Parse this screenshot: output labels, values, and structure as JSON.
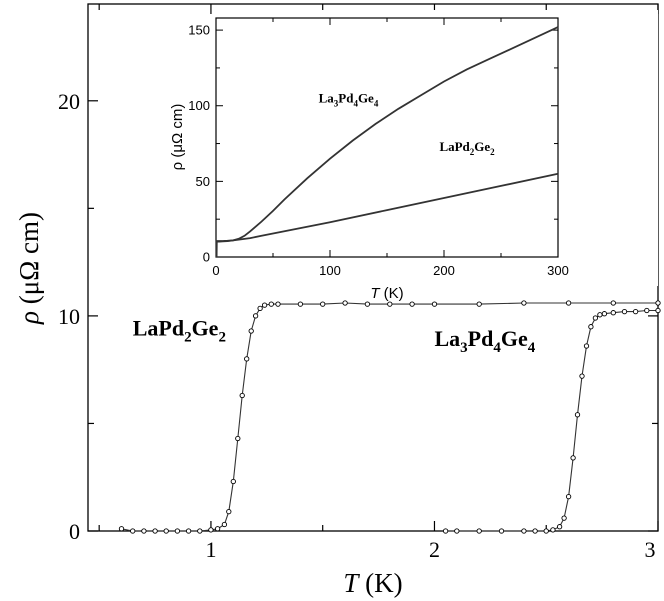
{
  "chart_data": [
    {
      "type": "scatter",
      "title": "",
      "xlabel": {
        "symbol": "T",
        "unit": "(K)"
      },
      "ylabel": {
        "symbol": "ρ",
        "unit": "(μΩ cm)"
      },
      "xlim": [
        0.45,
        3.0
      ],
      "ylim": [
        0,
        24.5
      ],
      "xticks": [
        1,
        2,
        3
      ],
      "yticks": [
        0,
        10,
        20
      ],
      "grid": false,
      "legend": "none",
      "series": [
        {
          "label": {
            "base": "LaPd",
            "sub1": "2",
            "mid": "Ge",
            "sub2": "2"
          },
          "label_anchor": {
            "x": 0.65,
            "y": 9.1
          },
          "x": [
            0.6,
            0.65,
            0.7,
            0.75,
            0.8,
            0.85,
            0.9,
            0.95,
            1.0,
            1.03,
            1.06,
            1.08,
            1.1,
            1.12,
            1.14,
            1.16,
            1.18,
            1.2,
            1.22,
            1.24,
            1.27,
            1.3,
            1.4,
            1.5,
            1.6,
            1.7,
            1.8,
            1.9,
            2.0,
            2.2,
            2.4,
            2.6,
            2.8,
            3.0
          ],
          "y": [
            0.1,
            0.0,
            0.0,
            0.0,
            0.0,
            0.0,
            0.0,
            0.0,
            0.05,
            0.1,
            0.3,
            0.9,
            2.3,
            4.3,
            6.3,
            8.0,
            9.3,
            10.0,
            10.35,
            10.5,
            10.55,
            10.55,
            10.55,
            10.55,
            10.6,
            10.55,
            10.55,
            10.55,
            10.55,
            10.55,
            10.6,
            10.6,
            10.6,
            10.6
          ]
        },
        {
          "label": {
            "base": "La",
            "sub1": "3",
            "mid": "Pd",
            "sub2": "4",
            "end": "Ge",
            "sub3": "4"
          },
          "label_anchor": {
            "x": 2.0,
            "y": 8.6
          },
          "x": [
            2.05,
            2.1,
            2.2,
            2.3,
            2.4,
            2.45,
            2.5,
            2.53,
            2.56,
            2.58,
            2.6,
            2.62,
            2.64,
            2.66,
            2.68,
            2.7,
            2.72,
            2.74,
            2.76,
            2.8,
            2.85,
            2.9,
            2.95,
            3.0
          ],
          "y": [
            0.0,
            0.0,
            0.0,
            0.0,
            0.0,
            0.0,
            0.0,
            0.05,
            0.2,
            0.6,
            1.6,
            3.4,
            5.4,
            7.2,
            8.6,
            9.5,
            9.9,
            10.05,
            10.1,
            10.15,
            10.2,
            10.2,
            10.25,
            10.25
          ]
        }
      ]
    },
    {
      "type": "line",
      "title": "",
      "xlabel": {
        "symbol": "T",
        "unit": "(K)"
      },
      "ylabel": "ρ (μΩ cm)",
      "xlim": [
        0,
        300
      ],
      "ylim": [
        0,
        158
      ],
      "xticks": [
        0,
        100,
        200,
        300
      ],
      "yticks": [
        0,
        50,
        100,
        150
      ],
      "grid": false,
      "legend": "none",
      "series": [
        {
          "label": {
            "base": "La",
            "sub1": "3",
            "mid": "Pd",
            "sub2": "4",
            "end": "Ge",
            "sub3": "4"
          },
          "label_anchor": {
            "x": 90,
            "y": 102
          },
          "x": [
            1,
            3,
            6,
            10,
            15,
            20,
            25,
            30,
            40,
            50,
            60,
            80,
            100,
            120,
            140,
            160,
            180,
            200,
            220,
            240,
            260,
            280,
            300
          ],
          "y": [
            10.2,
            10.2,
            10.3,
            10.5,
            11.0,
            12.0,
            14.0,
            17.0,
            23.5,
            30.5,
            38.0,
            52.0,
            65.0,
            77.0,
            88.0,
            98.0,
            107.0,
            116.0,
            124.0,
            131.0,
            138.0,
            145.0,
            152.0
          ]
        },
        {
          "label": {
            "base": "LaPd",
            "sub1": "2",
            "mid": "Ge",
            "sub2": "2"
          },
          "label_anchor": {
            "x": 196,
            "y": 70
          },
          "x": [
            1,
            3,
            6,
            10,
            15,
            20,
            30,
            40,
            60,
            80,
            100,
            150,
            200,
            250,
            300
          ],
          "y": [
            10.6,
            10.6,
            10.6,
            10.7,
            11.0,
            11.5,
            12.5,
            14.0,
            17.0,
            20.0,
            23.0,
            31.0,
            39.0,
            47.0,
            55.0
          ]
        }
      ]
    }
  ]
}
